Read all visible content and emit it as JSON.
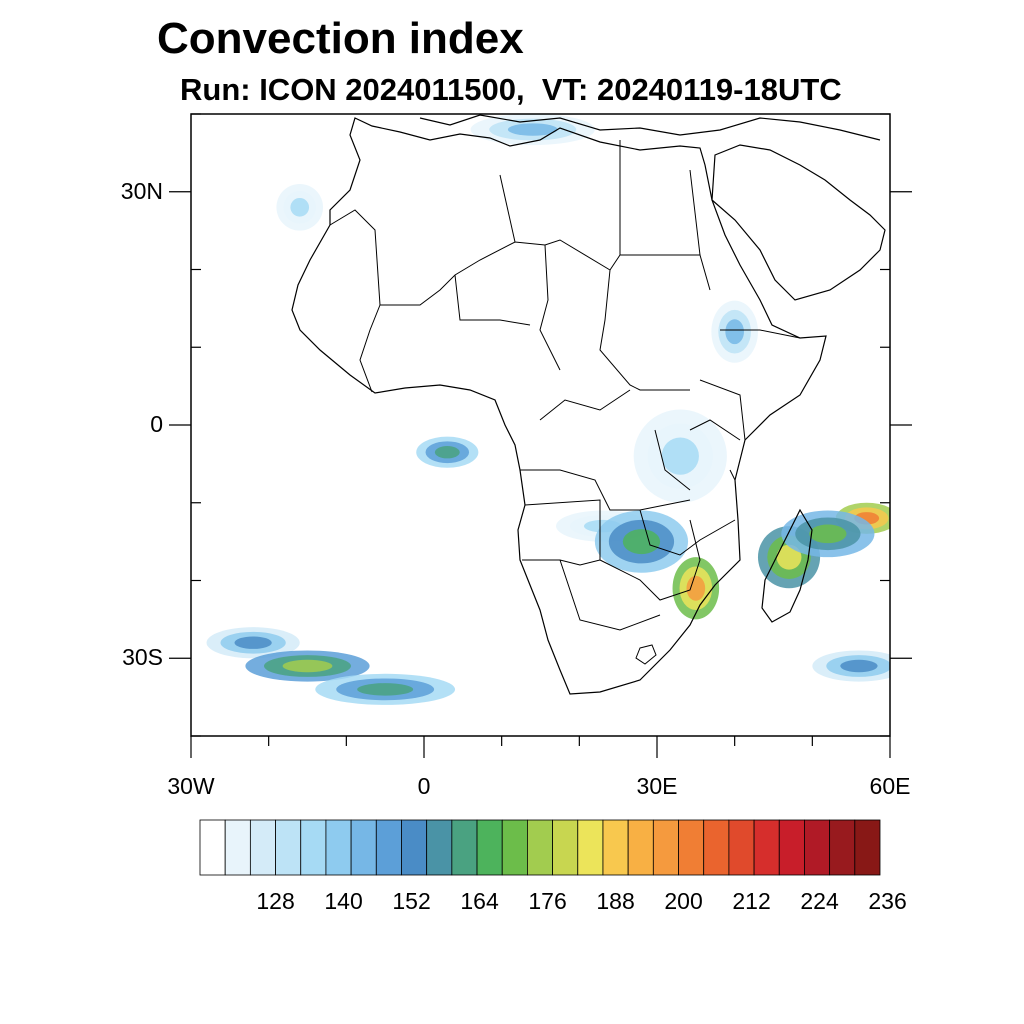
{
  "title": "Convection index",
  "subtitle": "Run: ICON 2024011500,  VT: 20240119-18UTC",
  "axes": {
    "lat_ticks": [
      {
        "lat": 30,
        "label": "30N"
      },
      {
        "lat": 0,
        "label": "0"
      },
      {
        "lat": -30,
        "label": "30S"
      }
    ],
    "lon_ticks": [
      {
        "lon": -30,
        "label": "30W"
      },
      {
        "lon": 0,
        "label": "0"
      },
      {
        "lon": 30,
        "label": "30E"
      },
      {
        "lon": 60,
        "label": "60E"
      }
    ],
    "lon_range": [
      -30,
      60
    ],
    "lat_range": [
      -40,
      40
    ]
  },
  "colorbar": {
    "colors": [
      "#ffffff",
      "#e8f4fb",
      "#d4ebf8",
      "#bde3f6",
      "#a6daf4",
      "#8ecbef",
      "#76b7e6",
      "#5c9fd8",
      "#4a8cc6",
      "#4a93a6",
      "#4aa281",
      "#4db35c",
      "#6cbd4a",
      "#a2cc4f",
      "#c8d650",
      "#ece45a",
      "#f8c84e",
      "#f8b044",
      "#f59a3e",
      "#f07e34",
      "#ea642e",
      "#e04a2c",
      "#d62e2c",
      "#c81e2a",
      "#b01a26",
      "#981a1e",
      "#881816"
    ],
    "labels": [
      "128",
      "140",
      "152",
      "164",
      "176",
      "188",
      "200",
      "212",
      "224",
      "236"
    ]
  },
  "convection_blobs": [
    {
      "lon": -22,
      "lat": -28,
      "level": 8,
      "rx": 6,
      "ry": 2
    },
    {
      "lon": -15,
      "lat": -31,
      "level": 13,
      "rx": 8,
      "ry": 2
    },
    {
      "lon": -5,
      "lat": -34,
      "level": 10,
      "rx": 9,
      "ry": 2
    },
    {
      "lon": 3,
      "lat": -3.5,
      "level": 10,
      "rx": 4,
      "ry": 2
    },
    {
      "lon": 23,
      "lat": -13,
      "level": 4,
      "rx": 6,
      "ry": 2
    },
    {
      "lon": 33,
      "lat": -4,
      "level": 4,
      "rx": 6,
      "ry": 6
    },
    {
      "lon": 28,
      "lat": -15,
      "level": 11,
      "rx": 6,
      "ry": 4
    },
    {
      "lon": 35,
      "lat": -21,
      "level": 18,
      "rx": 3,
      "ry": 4
    },
    {
      "lon": 47,
      "lat": -17,
      "level": 15,
      "rx": 4,
      "ry": 4
    },
    {
      "lon": 57,
      "lat": -12,
      "level": 19,
      "rx": 4,
      "ry": 2
    },
    {
      "lon": 52,
      "lat": -14,
      "level": 12,
      "rx": 6,
      "ry": 3
    },
    {
      "lon": 40,
      "lat": 12,
      "level": 6,
      "rx": 3,
      "ry": 4
    },
    {
      "lon": 14,
      "lat": 38,
      "level": 6,
      "rx": 8,
      "ry": 2
    },
    {
      "lon": 56,
      "lat": -31,
      "level": 8,
      "rx": 6,
      "ry": 2
    },
    {
      "lon": -16,
      "lat": 28,
      "level": 4,
      "rx": 3,
      "ry": 3
    }
  ]
}
